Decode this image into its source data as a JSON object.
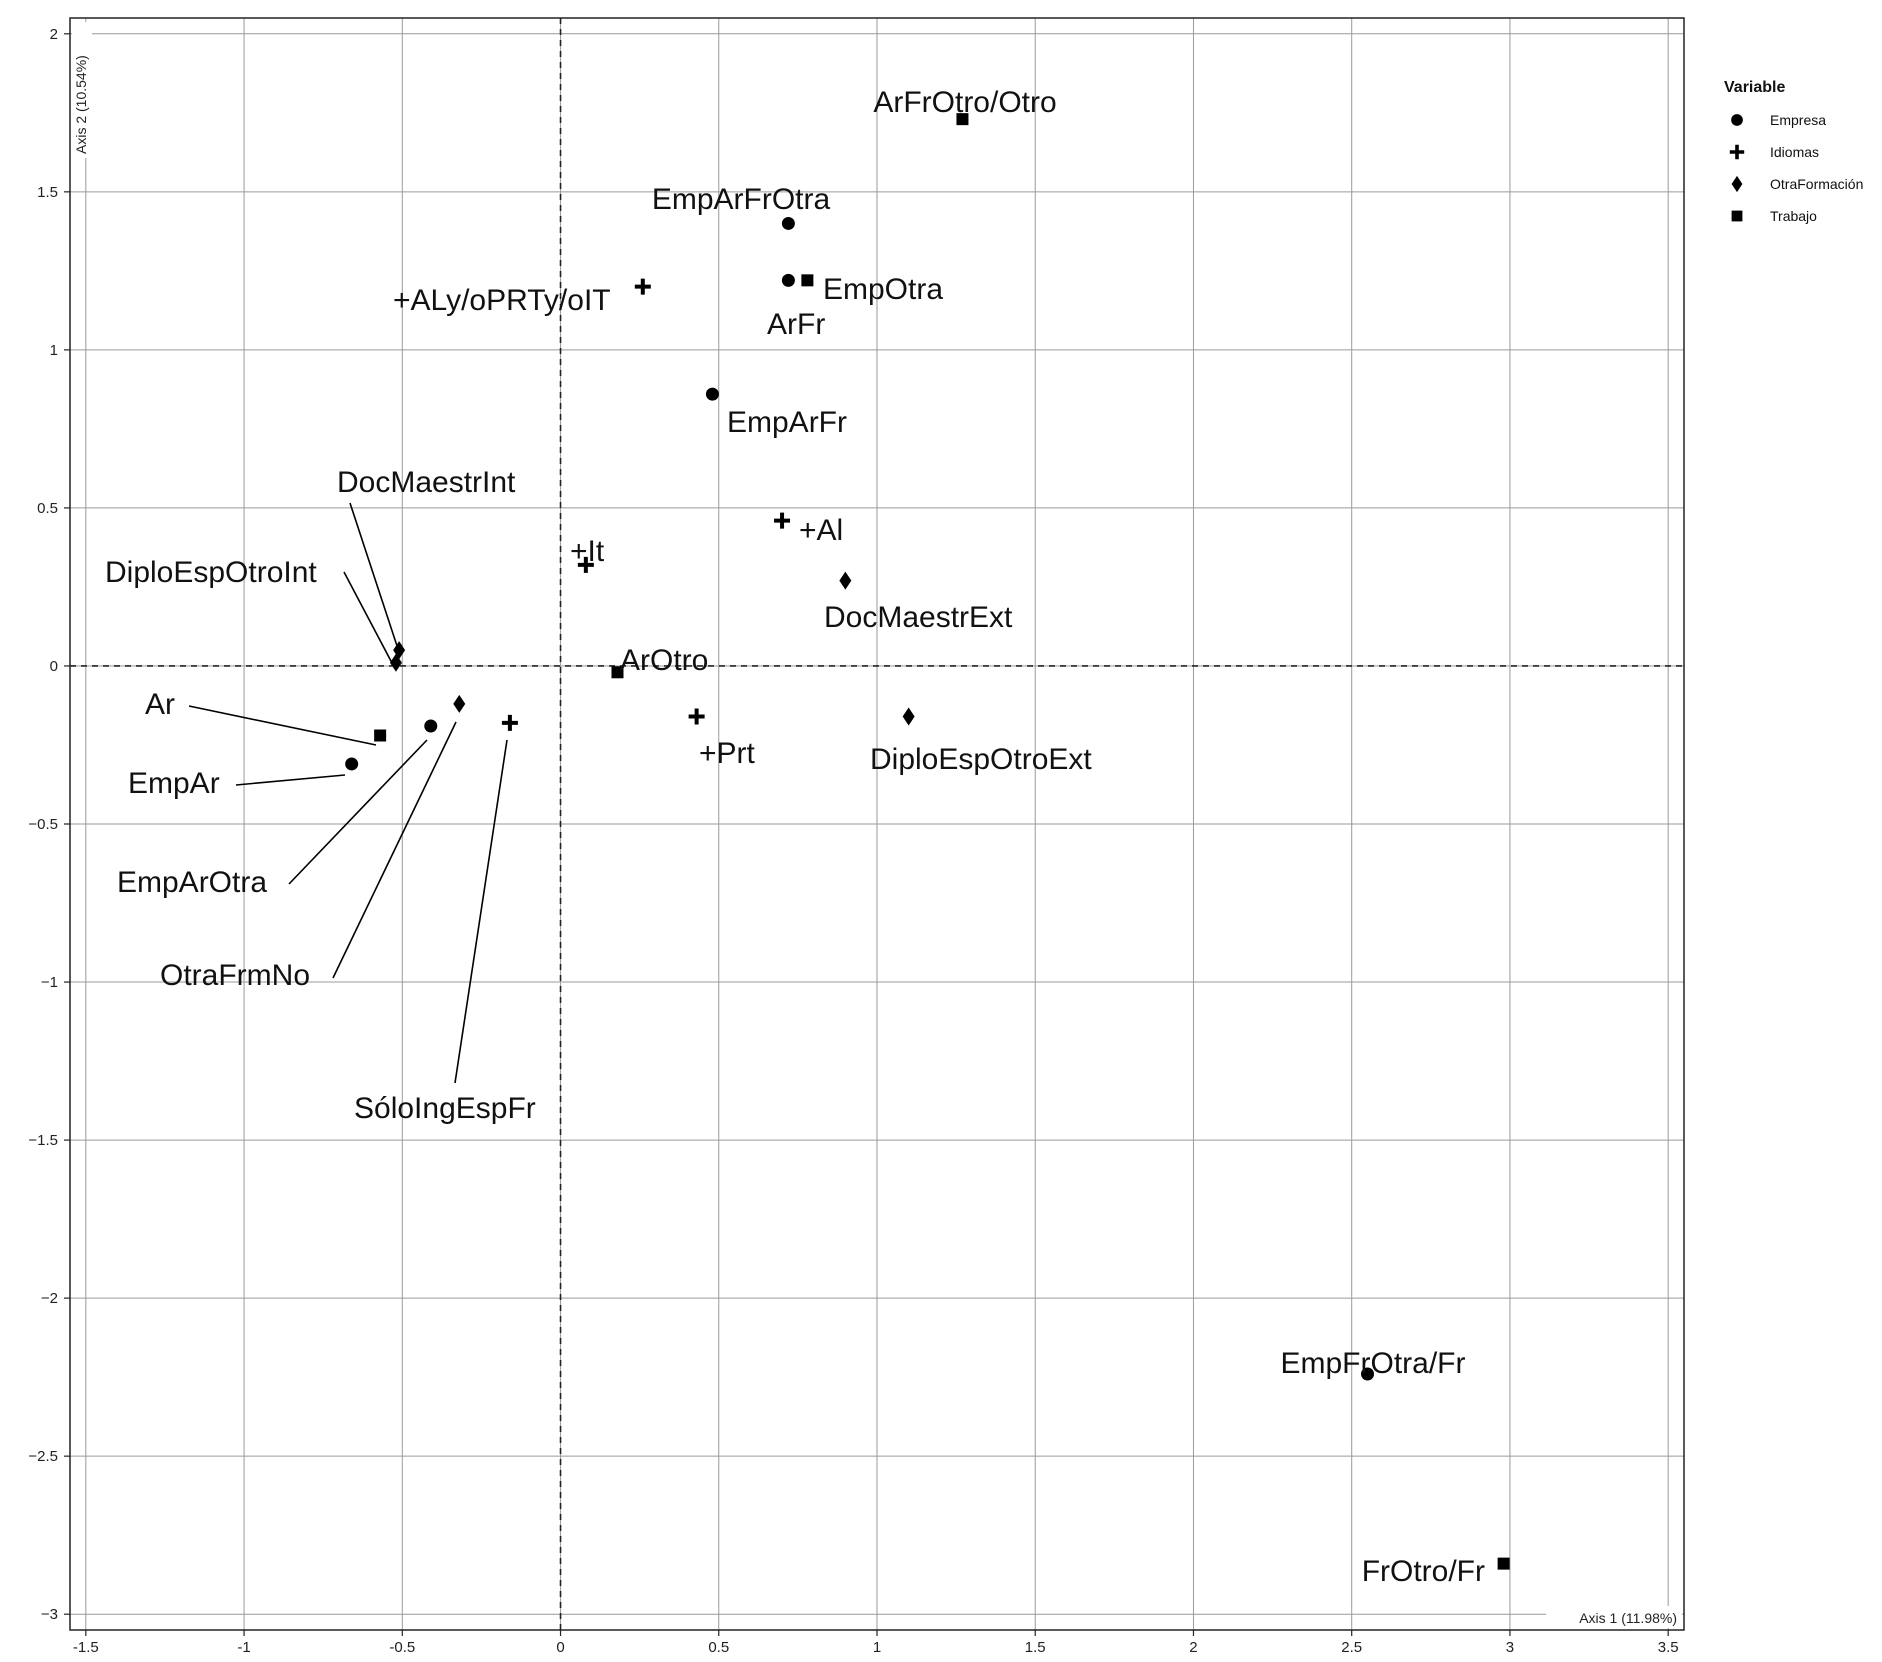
{
  "chart_data": {
    "type": "scatter",
    "title": "",
    "xlabel": "Axis 1 (11.98%)",
    "ylabel": "Axis 2 (10.54%)",
    "xlim": [
      -1.55,
      3.55
    ],
    "ylim": [
      -3.05,
      2.05
    ],
    "xticks": [
      -1.5,
      -1,
      -0.5,
      0,
      0.5,
      1,
      1.5,
      2,
      2.5,
      3,
      3.5
    ],
    "xtick_labels": [
      "-1.5",
      "-1",
      "-0.5",
      "0",
      "0.5",
      "1",
      "1.5",
      "2",
      "2.5",
      "3",
      "3.5"
    ],
    "yticks": [
      2,
      1.5,
      1,
      0.5,
      0,
      -0.5,
      -1,
      -1.5,
      -2,
      -2.5,
      -3
    ],
    "ytick_labels": [
      "2",
      "1.5",
      "1",
      "0.5",
      "0",
      "−0.5",
      "−1",
      "−1.5",
      "−2",
      "−2.5",
      "−3"
    ],
    "grid": true,
    "reference_lines": {
      "x": 0,
      "y": 0,
      "style": "dashed"
    },
    "legend": {
      "title": "Variable",
      "position": "right",
      "entries": [
        {
          "name": "Empresa",
          "shape": "circle"
        },
        {
          "name": "Idiomas",
          "shape": "cross"
        },
        {
          "name": "OtraFormación",
          "shape": "diamond"
        },
        {
          "name": "Trabajo",
          "shape": "square"
        }
      ]
    },
    "series": [
      {
        "name": "Empresa",
        "shape": "circle",
        "points": [
          {
            "label": "EmpArFrOtra",
            "x": 0.72,
            "y": 1.4
          },
          {
            "label": "ArFr",
            "x": 0.72,
            "y": 1.22
          },
          {
            "label": "EmpArFr",
            "x": 0.48,
            "y": 0.86
          },
          {
            "label": "EmpArOtra",
            "x": -0.41,
            "y": -0.19
          },
          {
            "label": "EmpAr",
            "x": -0.66,
            "y": -0.31
          },
          {
            "label": "EmpFrOtra/Fr",
            "x": 2.55,
            "y": -2.24
          }
        ]
      },
      {
        "name": "Idiomas",
        "shape": "cross",
        "points": [
          {
            "label": "+ALy/oPRTy/oIT",
            "x": 0.26,
            "y": 1.2
          },
          {
            "label": "+Al",
            "x": 0.7,
            "y": 0.46
          },
          {
            "label": "+It",
            "x": 0.08,
            "y": 0.32
          },
          {
            "label": "+Prt",
            "x": 0.43,
            "y": -0.16
          },
          {
            "label": "SóloIngEspFr",
            "x": -0.16,
            "y": -0.18
          }
        ]
      },
      {
        "name": "OtraFormación",
        "shape": "diamond",
        "points": [
          {
            "label": "DocMaestrExt",
            "x": 0.9,
            "y": 0.27
          },
          {
            "label": "DiploEspOtroExt",
            "x": 1.1,
            "y": -0.16
          },
          {
            "label": "DocMaestrInt",
            "x": -0.51,
            "y": 0.05
          },
          {
            "label": "DiploEspOtroInt",
            "x": -0.52,
            "y": 0.01
          },
          {
            "label": "OtraFrmNo",
            "x": -0.32,
            "y": -0.12
          }
        ]
      },
      {
        "name": "Trabajo",
        "shape": "square",
        "points": [
          {
            "label": "ArFrOtro/Otro",
            "x": 1.27,
            "y": 1.73
          },
          {
            "label": "EmpOtra",
            "x": 0.78,
            "y": 1.22
          },
          {
            "label": "ArOtro",
            "x": 0.18,
            "y": -0.02
          },
          {
            "label": "Ar",
            "x": -0.57,
            "y": -0.22
          },
          {
            "label": "FrOtro/Fr",
            "x": 2.98,
            "y": -2.84
          }
        ]
      }
    ]
  }
}
